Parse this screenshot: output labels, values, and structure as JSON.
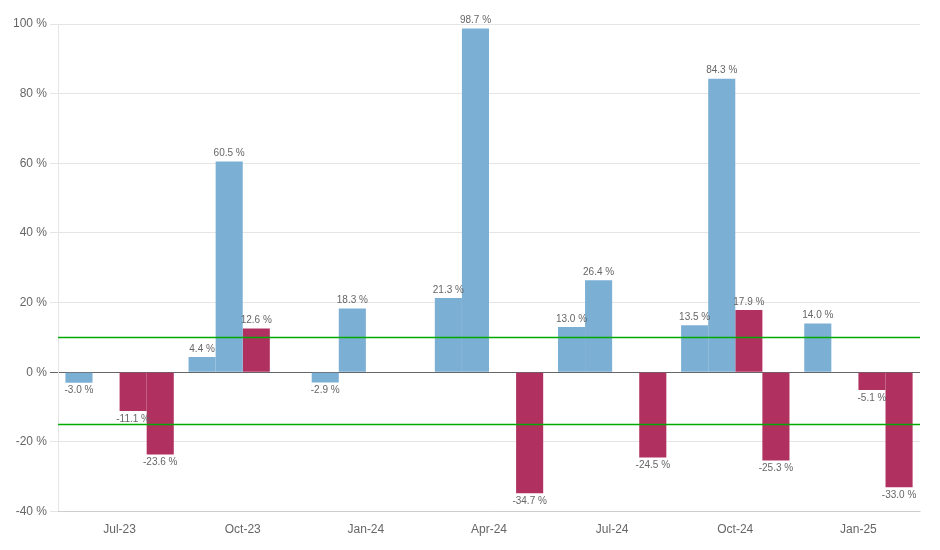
{
  "chart_data": {
    "type": "bar",
    "categories": [
      "Jul-23",
      "Oct-23",
      "Jan-24",
      "Apr-24",
      "Jul-24",
      "Oct-24",
      "Jan-25"
    ],
    "series": [
      {
        "color": "#7BAFD4",
        "values": [
          -3.0,
          4.4,
          -2.9,
          21.3,
          13.0,
          13.5,
          14.0
        ],
        "value_labels": [
          "-3.0 %",
          "4.4 %",
          "-2.9 %",
          "21.3 %",
          "13.0 %",
          "13.5 %",
          "14.0 %"
        ]
      },
      {
        "color": "#7BAFD4",
        "values": [
          null,
          60.5,
          18.3,
          98.7,
          26.4,
          84.3,
          null
        ],
        "value_labels": [
          null,
          "60.5 %",
          "18.3 %",
          "98.7 %",
          "26.4 %",
          "84.3 %",
          null
        ]
      },
      {
        "color": "#B03060",
        "values": [
          -11.1,
          12.6,
          null,
          null,
          null,
          17.9,
          -5.1
        ],
        "value_labels": [
          "-11.1 %",
          "12.6 %",
          null,
          null,
          null,
          "17.9 %",
          "-5.1 %"
        ]
      },
      {
        "color": "#B03060",
        "values": [
          -23.6,
          null,
          null,
          -34.7,
          -24.5,
          -25.3,
          -33.0
        ],
        "value_labels": [
          "-23.6 %",
          null,
          null,
          "-34.7 %",
          "-24.5 %",
          "-25.3 %",
          "-33.0 %"
        ]
      }
    ],
    "reference_lines": [
      {
        "value": 10.0,
        "color": "#00AA00"
      },
      {
        "value": -15.0,
        "color": "#00AA00"
      }
    ],
    "ylim": [
      -40,
      100
    ],
    "yticks": [
      {
        "value": -40,
        "label": "-40 %"
      },
      {
        "value": -20,
        "label": "-20 %"
      },
      {
        "value": 0,
        "label": "0 %"
      },
      {
        "value": 20,
        "label": "20 %"
      },
      {
        "value": 40,
        "label": "40 %"
      },
      {
        "value": 60,
        "label": "60 %"
      },
      {
        "value": 80,
        "label": "80 %"
      },
      {
        "value": 100,
        "label": "100 %"
      }
    ],
    "grid": true,
    "data_labels": true
  }
}
